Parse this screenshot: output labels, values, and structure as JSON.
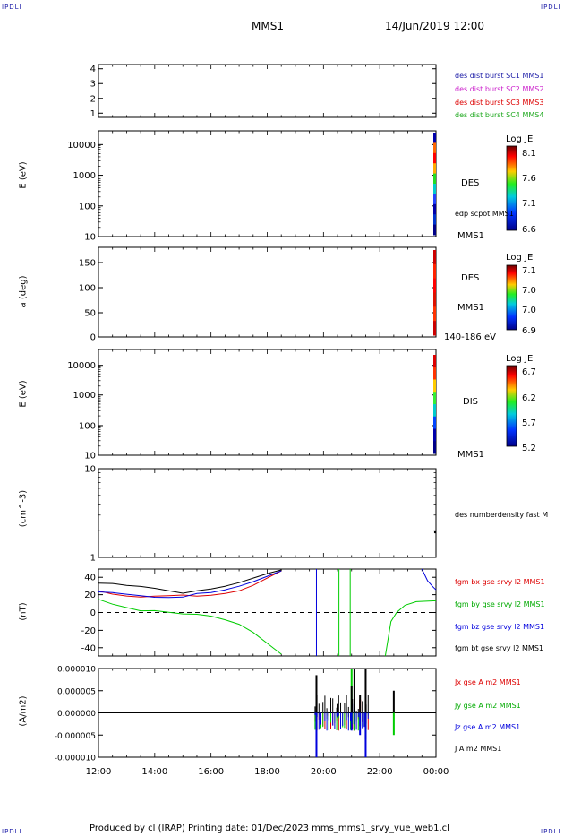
{
  "header": {
    "corner_label": "IPDLI",
    "spacecraft": "MMS1",
    "datetime": "14/Jun/2019 12:00"
  },
  "footer": {
    "text": "Produced by cl (IRAP)   Printing date: 01/Dec/2023   mms_mms1_srvy_vue_web1.cl"
  },
  "colors": {
    "mms1": "#1a1aa6",
    "mms2": "#cc22cc",
    "mms3": "#dd0000",
    "mms4": "#22aa22",
    "bx": "#dd0000",
    "by": "#00cc00",
    "bz": "#0000dd",
    "bt": "#000000"
  },
  "panels": {
    "burst": {
      "yticks": [
        "4",
        "3",
        "2",
        "1"
      ],
      "legend": [
        "des dist burst SC1 MMS1",
        "des dist burst SC2 MMS2",
        "des dist burst SC3 MMS3",
        "des dist burst SC4 MMS4"
      ]
    },
    "des_energy": {
      "ylabel": "E (eV)",
      "yticks": [
        "10000",
        "1000",
        "100",
        "10"
      ],
      "species": "DES",
      "overlay": "edp scpot MMS1",
      "bottom_label": "MMS1",
      "colorbar_title": "Log JE",
      "colorbar_ticks": [
        "8.1",
        "7.6",
        "7.1",
        "6.6"
      ]
    },
    "des_pitch": {
      "ylabel": "a (deg)",
      "yticks": [
        "150",
        "100",
        "50",
        "0"
      ],
      "species": "DES",
      "sc": "MMS1",
      "energy_range": "140-186 eV",
      "colorbar_title": "Log JE",
      "colorbar_ticks": [
        "7.1",
        "7.0",
        "7.0",
        "6.9"
      ]
    },
    "dis_energy": {
      "ylabel": "E (eV)",
      "yticks": [
        "10000",
        "1000",
        "100",
        "10"
      ],
      "species": "DIS",
      "bottom_label": "MMS1",
      "colorbar_title": "Log JE",
      "colorbar_ticks": [
        "6.7",
        "6.2",
        "5.7",
        "5.2"
      ]
    },
    "density": {
      "ylabel": "(cm^-3)",
      "yticks": [
        "10",
        "1"
      ],
      "legend": "des numberdensity fast M"
    },
    "bfield": {
      "ylabel": "(nT)",
      "yticks": [
        "40",
        "20",
        "0",
        "-20",
        "-40"
      ],
      "legend": [
        "fgm bx gse srvy l2 MMS1",
        "fgm by gse srvy l2 MMS1",
        "fgm bz gse srvy l2 MMS1",
        "fgm bt gse srvy l2 MMS1"
      ]
    },
    "current": {
      "ylabel": "(A/m2)",
      "yticks": [
        "0.000010",
        "0.000005",
        "0.000000",
        "-0.000005",
        "-0.000010"
      ],
      "legend": [
        "Jx gse A m2 MMS1",
        "Jy gse A m2 MMS1",
        "Jz gse A m2 MMS1",
        "J A m2 MMS1"
      ]
    }
  },
  "chart_data": [
    {
      "type": "line",
      "title": "",
      "xlabel": "",
      "ylabel": "(nT)",
      "ylim": [
        -48,
        48
      ],
      "x_ticks": [
        "12:00",
        "14:00",
        "16:00",
        "18:00",
        "20:00",
        "22:00",
        "00:00"
      ],
      "x": [
        12.0,
        12.5,
        13.0,
        13.5,
        14.0,
        14.5,
        15.0,
        15.5,
        16.0,
        16.5,
        17.0,
        17.5,
        18.0,
        18.5
      ],
      "series": [
        {
          "name": "fgm bx gse srvy l2 MMS1",
          "values": [
            24,
            22,
            21,
            20,
            20,
            19,
            18,
            18,
            19,
            21,
            24,
            30,
            38,
            46
          ]
        },
        {
          "name": "fgm by gse srvy l2 MMS1",
          "values": [
            12,
            8,
            6,
            4,
            5,
            3,
            0,
            -2,
            -4,
            -8,
            -13,
            -22,
            -34,
            -46
          ]
        },
        {
          "name": "fgm bz gse srvy l2 MMS1",
          "values": [
            20,
            19,
            18,
            18,
            18,
            19,
            20,
            21,
            22,
            25,
            29,
            34,
            40,
            46
          ]
        },
        {
          "name": "fgm bt gse srvy l2 MMS1",
          "values": [
            32,
            30,
            27,
            26,
            25,
            24,
            23,
            24,
            26,
            29,
            33,
            38,
            43,
            48
          ]
        }
      ]
    },
    {
      "type": "line",
      "title": "",
      "xlabel": "",
      "ylabel": "(A/m2)",
      "ylim": [
        -1e-05,
        1e-05
      ],
      "x_ticks": [
        "12:00",
        "14:00",
        "16:00",
        "18:00",
        "20:00",
        "22:00",
        "00:00"
      ],
      "x": [
        12.0,
        19.6,
        19.75,
        19.9,
        20.5,
        21.0,
        21.1,
        21.3,
        21.5,
        21.8,
        22.5,
        24.0
      ],
      "series": [
        {
          "name": "Jx gse A m2 MMS1",
          "values": [
            0,
            0,
            -2e-06,
            0,
            0,
            -1e-06,
            -4e-06,
            3e-06,
            -2e-06,
            0,
            0,
            0
          ]
        },
        {
          "name": "Jy gse A m2 MMS1",
          "values": [
            0,
            0,
            -3e-06,
            0,
            -1e-06,
            1e-05,
            -4e-06,
            -3e-06,
            -6e-06,
            0,
            -5e-06,
            0
          ]
        },
        {
          "name": "Jz gse A m2 MMS1",
          "values": [
            0,
            0,
            -1e-05,
            0,
            -1e-06,
            -4e-06,
            2e-06,
            -5e-06,
            -1e-05,
            0,
            0,
            0
          ]
        },
        {
          "name": "J A m2 MMS1",
          "values": [
            0,
            0,
            8.5e-06,
            0,
            2e-06,
            6e-06,
            1e-05,
            4e-06,
            1e-05,
            0,
            5e-06,
            0
          ]
        }
      ]
    }
  ]
}
